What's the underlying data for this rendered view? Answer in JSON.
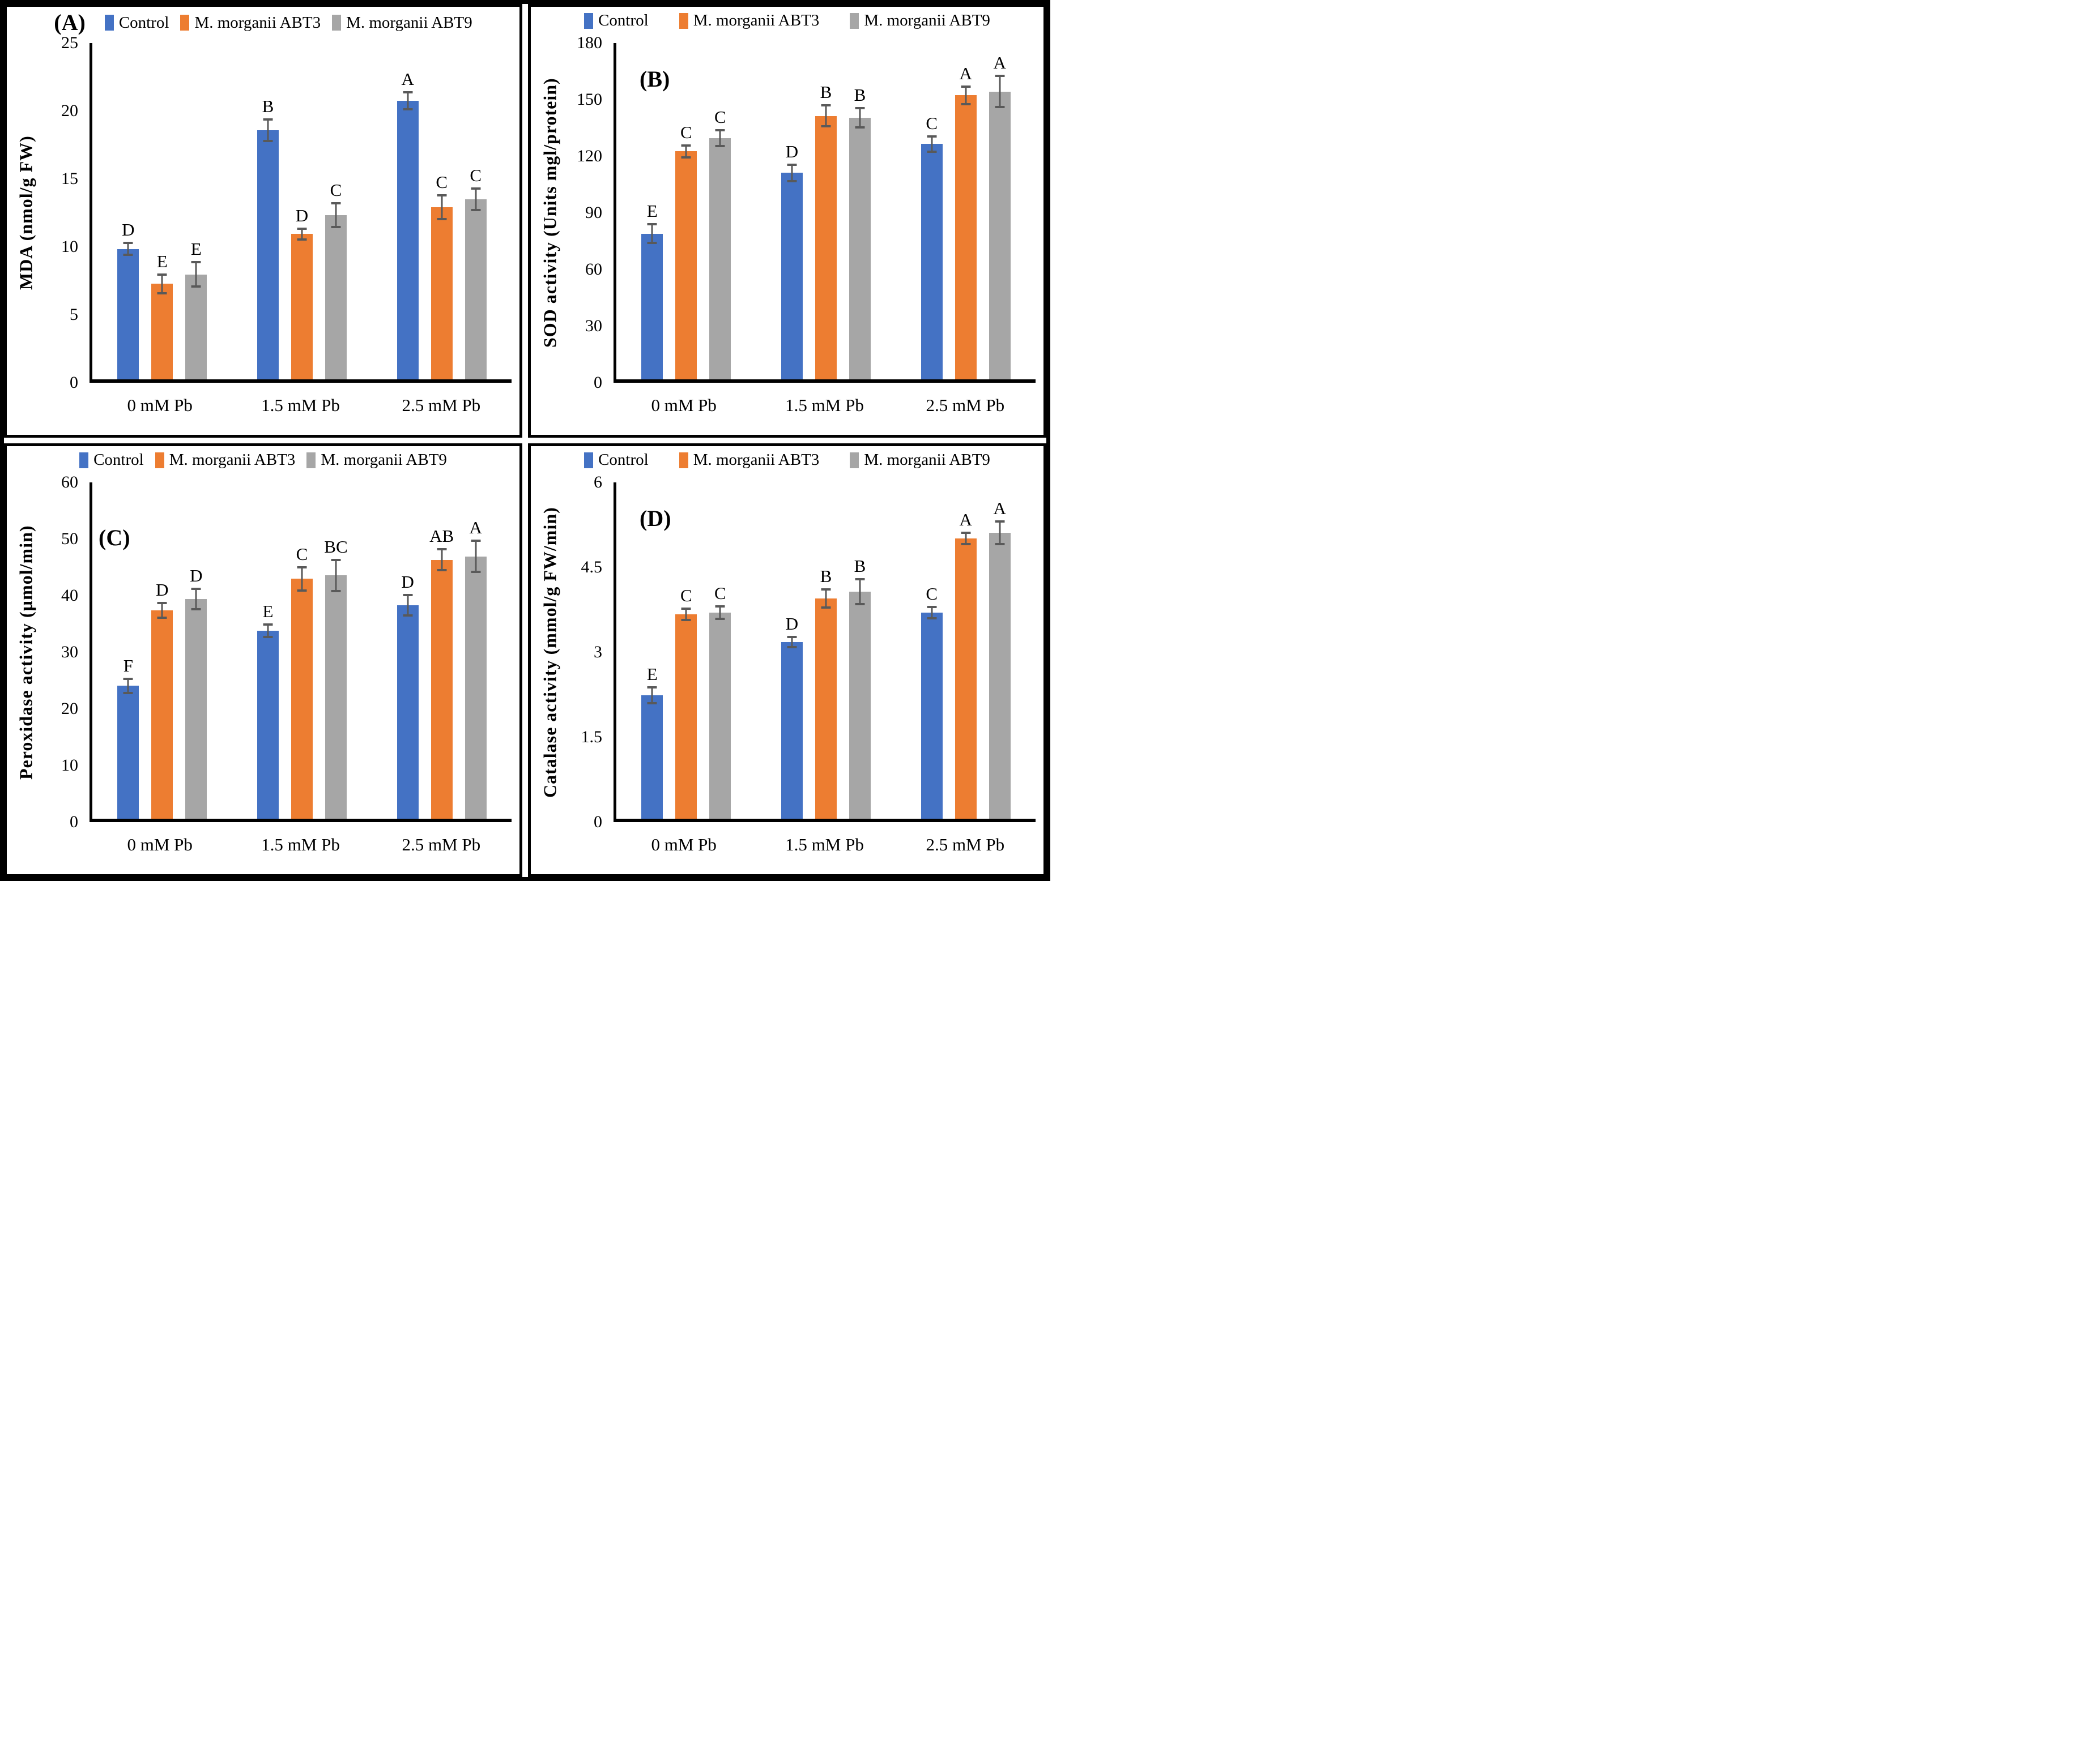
{
  "figure": {
    "background_color": "#FFFFFF",
    "border_color": "#000000",
    "error_bar_color": "#595959",
    "series_colors": {
      "control": "#4472C4",
      "abt3": "#ED7D31",
      "abt9": "#A6A6A6"
    }
  },
  "chart_data": [
    {
      "panel": "(A)",
      "type": "bar",
      "ylabel": "MDA (nmol/g FW)",
      "ylim": [
        0,
        25
      ],
      "yticks": [
        "0",
        "5",
        "10",
        "15",
        "20",
        "25"
      ],
      "categories": [
        "0 mM Pb",
        "1.5 mM Pb",
        "2.5 mM Pb"
      ],
      "grid": false,
      "legend_position": "top",
      "series": [
        {
          "name": "Control",
          "color": "#4472C4",
          "values": [
            9.7,
            18.5,
            20.7
          ],
          "errors": [
            0.45,
            0.8,
            0.64
          ],
          "letters": [
            "D",
            "B",
            "A"
          ]
        },
        {
          "name": "M. morganii ABT3",
          "color": "#ED7D31",
          "values": [
            7.1,
            10.8,
            12.8
          ],
          "errors": [
            0.7,
            0.4,
            0.9
          ],
          "letters": [
            "E",
            "D",
            "C"
          ]
        },
        {
          "name": "M. morganii  ABT9",
          "color": "#A6A6A6",
          "values": [
            7.8,
            12.2,
            13.4
          ],
          "errors": [
            0.9,
            0.87,
            0.8
          ],
          "letters": [
            "E",
            "C",
            "C"
          ]
        }
      ]
    },
    {
      "panel": "(B)",
      "type": "bar",
      "ylabel": "SOD activity (Units mgl/protein)",
      "ylim": [
        0,
        180
      ],
      "yticks": [
        "0",
        "30",
        "60",
        "90",
        "120",
        "150",
        "180"
      ],
      "categories": [
        "0 mM Pb",
        "1.5 mM Pb",
        "2.5 mM Pb"
      ],
      "grid": false,
      "legend_position": "top",
      "series": [
        {
          "name": "Control",
          "color": "#4472C4",
          "values": [
            78,
            110.5,
            126
          ],
          "errors": [
            5,
            4.4,
            4.1
          ],
          "letters": [
            "E",
            "D",
            "C"
          ]
        },
        {
          "name": "M. morganii ABT3",
          "color": "#ED7D31",
          "values": [
            122,
            141,
            152
          ],
          "errors": [
            3.2,
            5.6,
            4.6
          ],
          "letters": [
            "C",
            "B",
            "A"
          ]
        },
        {
          "name": "M. morganii  ABT9",
          "color": "#A6A6A6",
          "values": [
            129,
            140,
            154
          ],
          "errors": [
            4.2,
            5.1,
            8.3
          ],
          "letters": [
            "C",
            "B",
            "A"
          ]
        }
      ]
    },
    {
      "panel": "(C)",
      "type": "bar",
      "ylabel": "Peroxidase activity (µmol/min)",
      "ylim": [
        0,
        60
      ],
      "yticks": [
        "0",
        "10",
        "20",
        "30",
        "40",
        "50",
        "60"
      ],
      "categories": [
        "0 mM Pb",
        "1.5 mM Pb",
        "2.5 mM Pb"
      ],
      "grid": false,
      "legend_position": "top",
      "series": [
        {
          "name": "Control",
          "color": "#4472C4",
          "values": [
            23.7,
            33.5,
            38.1
          ],
          "errors": [
            1.3,
            1.1,
            1.8
          ],
          "letters": [
            "F",
            "E",
            "D"
          ]
        },
        {
          "name": "M. morganii ABT3",
          "color": "#ED7D31",
          "values": [
            37.2,
            42.8,
            46.2
          ],
          "errors": [
            1.3,
            2.1,
            1.9
          ],
          "letters": [
            "D",
            "C",
            "AB"
          ]
        },
        {
          "name": "M. morganii  ABT9",
          "color": "#A6A6A6",
          "values": [
            39.2,
            43.4,
            46.8
          ],
          "errors": [
            1.85,
            2.75,
            2.8
          ],
          "letters": [
            "D",
            "BC",
            "A"
          ]
        }
      ]
    },
    {
      "panel": "(D)",
      "type": "bar",
      "ylabel": "Catalase activity (mmol/g FW/min)",
      "ylim": [
        0,
        6
      ],
      "yticks": [
        "0",
        "1.5",
        "3",
        "4.5",
        "6"
      ],
      "categories": [
        "0 mM Pb",
        "1.5 mM Pb",
        "2.5 mM Pb"
      ],
      "grid": false,
      "legend_position": "top",
      "series": [
        {
          "name": "Control",
          "color": "#4472C4",
          "values": [
            2.2,
            3.15,
            3.68
          ],
          "errors": [
            0.14,
            0.09,
            0.1
          ],
          "letters": [
            "E",
            "D",
            "C"
          ]
        },
        {
          "name": "M. morganii ABT3",
          "color": "#ED7D31",
          "values": [
            3.65,
            3.93,
            5.0
          ],
          "errors": [
            0.1,
            0.16,
            0.1
          ],
          "letters": [
            "C",
            "B",
            "A"
          ]
        },
        {
          "name": "M. morganii  ABT9",
          "color": "#A6A6A6",
          "values": [
            3.68,
            4.05,
            5.1
          ],
          "errors": [
            0.11,
            0.22,
            0.2
          ],
          "letters": [
            "C",
            "B",
            "A"
          ]
        }
      ]
    }
  ]
}
